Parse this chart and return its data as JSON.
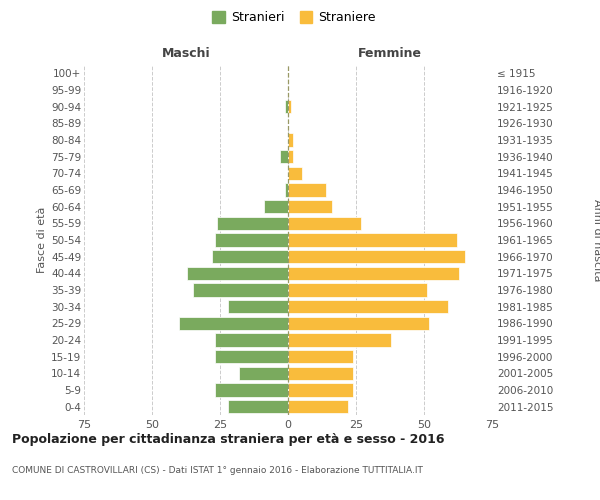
{
  "age_groups": [
    "0-4",
    "5-9",
    "10-14",
    "15-19",
    "20-24",
    "25-29",
    "30-34",
    "35-39",
    "40-44",
    "45-49",
    "50-54",
    "55-59",
    "60-64",
    "65-69",
    "70-74",
    "75-79",
    "80-84",
    "85-89",
    "90-94",
    "95-99",
    "100+"
  ],
  "birth_years": [
    "2011-2015",
    "2006-2010",
    "2001-2005",
    "1996-2000",
    "1991-1995",
    "1986-1990",
    "1981-1985",
    "1976-1980",
    "1971-1975",
    "1966-1970",
    "1961-1965",
    "1956-1960",
    "1951-1955",
    "1946-1950",
    "1941-1945",
    "1936-1940",
    "1931-1935",
    "1926-1930",
    "1921-1925",
    "1916-1920",
    "≤ 1915"
  ],
  "males": [
    22,
    27,
    18,
    27,
    27,
    40,
    22,
    35,
    37,
    28,
    27,
    26,
    9,
    1,
    0,
    3,
    0,
    0,
    1,
    0,
    0
  ],
  "females": [
    22,
    24,
    24,
    24,
    38,
    52,
    59,
    51,
    63,
    65,
    62,
    27,
    16,
    14,
    5,
    2,
    2,
    0,
    1,
    0,
    0
  ],
  "male_color": "#7aaa5e",
  "female_color": "#f9bc3c",
  "bar_edge_color": "#ffffff",
  "title": "Popolazione per cittadinanza straniera per età e sesso - 2016",
  "subtitle": "COMUNE DI CASTROVILLARI (CS) - Dati ISTAT 1° gennaio 2016 - Elaborazione TUTTITALIA.IT",
  "xlabel_left": "Maschi",
  "xlabel_right": "Femmine",
  "ylabel_left": "Fasce di età",
  "ylabel_right": "Anni di nascita",
  "legend_male": "Stranieri",
  "legend_female": "Straniere",
  "xlim": 75,
  "background_color": "#ffffff",
  "grid_color": "#cccccc"
}
